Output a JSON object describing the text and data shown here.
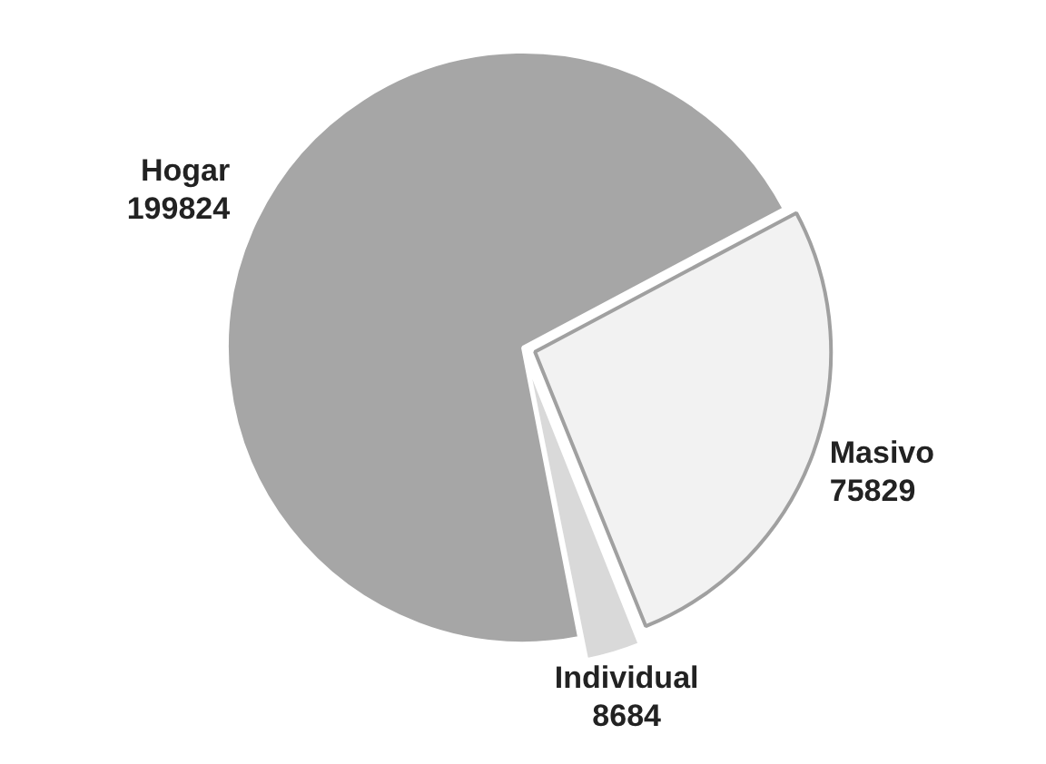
{
  "chart_data": {
    "type": "pie",
    "categories": [
      "Hogar",
      "Masivo",
      "Individual"
    ],
    "values": [
      199824,
      75829,
      8684
    ],
    "colors": [
      "#a6a6a6",
      "#f2f2f2",
      "#d9d9d9"
    ],
    "data_labels": true,
    "legend": false
  }
}
